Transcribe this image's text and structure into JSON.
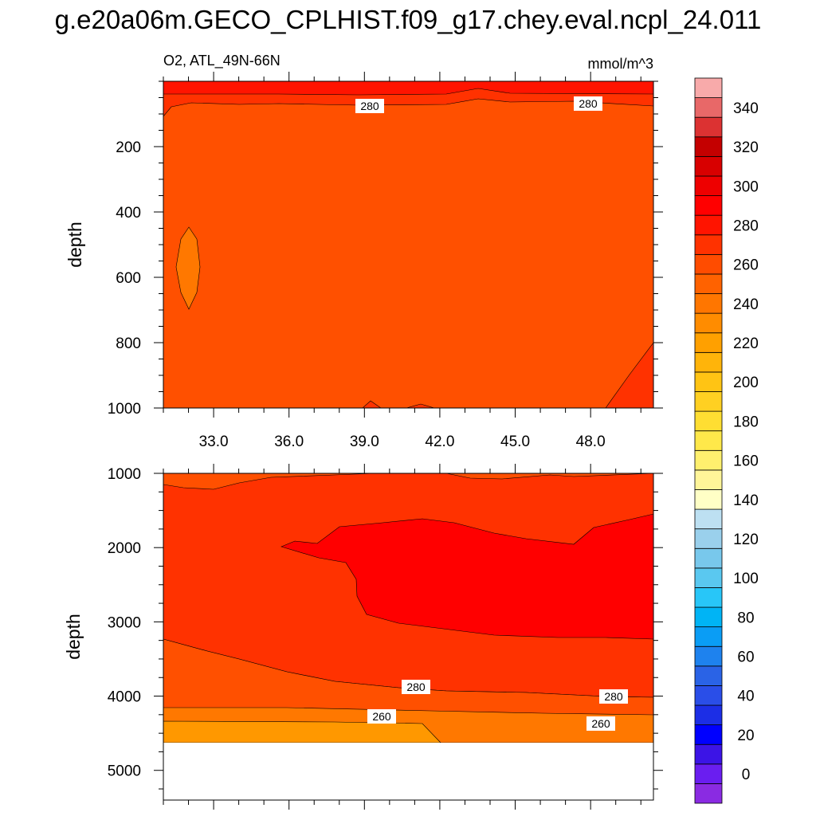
{
  "title": "g.e20a06m.GECO_CPLHIST.f09_g17.chey.eval.ncpl_24.011",
  "subtitle_left": "O2, ATL_49N-66N",
  "subtitle_right": "mmol/m^3",
  "chart_data": [
    {
      "type": "heatmap",
      "panel": "upper",
      "ylabel": "depth",
      "xlim": [
        31.0,
        50.5
      ],
      "ylim": [
        1000,
        0
      ],
      "x_ticks": [
        "33.0",
        "36.0",
        "39.0",
        "42.0",
        "45.0",
        "48.0"
      ],
      "y_ticks": [
        "200",
        "400",
        "600",
        "800",
        "1000"
      ],
      "contour_labels": [
        "280",
        "280"
      ],
      "description_values": {
        "surface_layer": "290-300",
        "bulk": "270-280",
        "lens_near_x32.5_y500-700": "260-270",
        "bottom_right_corner": "280-290"
      }
    },
    {
      "type": "heatmap",
      "panel": "lower",
      "ylabel": "depth",
      "xlim": [
        31.0,
        50.5
      ],
      "ylim": [
        5400,
        1000
      ],
      "x_ticks": [
        "33.0",
        "36.0",
        "39.0",
        "42.0",
        "45.0",
        "48.0"
      ],
      "y_ticks": [
        "1000",
        "2000",
        "3000",
        "4000",
        "5000"
      ],
      "contour_labels": [
        "280",
        "280",
        "260",
        "260"
      ],
      "description_values": {
        "top_band": "270-280",
        "middle": "280-290",
        "core": "290-300",
        "deep": "270-280",
        "bottom": "250-270",
        "no_data_below": 4600
      }
    }
  ],
  "colorbar": {
    "labels": [
      "0",
      "20",
      "40",
      "60",
      "80",
      "100",
      "120",
      "140",
      "160",
      "180",
      "200",
      "220",
      "240",
      "260",
      "280",
      "300",
      "320",
      "340"
    ],
    "colors": [
      "#8a2be2",
      "#6a1ef0",
      "#3c14e6",
      "#0000ff",
      "#1c2ee6",
      "#2a4ee8",
      "#2a63e6",
      "#1e82ee",
      "#0a9df5",
      "#00b4f5",
      "#28c6f8",
      "#5ac8f0",
      "#78c8ec",
      "#9ad0ec",
      "#bde0f2",
      "#ffffc6",
      "#fff599",
      "#fff06e",
      "#ffe84a",
      "#ffde32",
      "#ffd022",
      "#ffc414",
      "#ffb40a",
      "#ffa000",
      "#ff8c00",
      "#ff7600",
      "#ff6200",
      "#ff4c00",
      "#ff3200",
      "#ff1400",
      "#ff0000",
      "#ee0000",
      "#d80000",
      "#c40000",
      "#dc3232",
      "#e86868",
      "#f8aaaa"
    ]
  },
  "palette": {
    "c250": "#ff9800",
    "c260": "#ff7800",
    "c270": "#ff5000",
    "c280": "#ff3200",
    "c290": "#ff0000",
    "c300": "#ef0000"
  }
}
